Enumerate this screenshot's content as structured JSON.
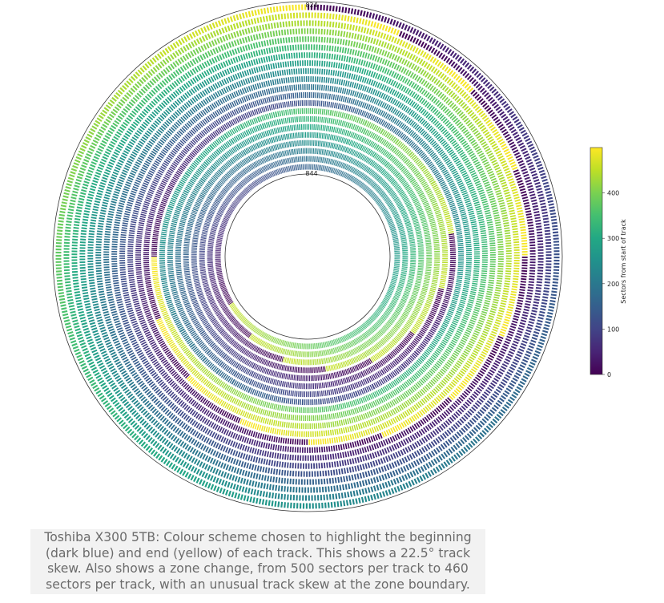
{
  "chart_data": {
    "type": "polar-heatmap",
    "title": "Toshiba X300 5TB",
    "track_labels": {
      "outer": "824",
      "inner": "844"
    },
    "outer_track": 824,
    "inner_track": 844,
    "zones": [
      {
        "tracks": [
          824,
          836
        ],
        "sectors_per_track": 500
      },
      {
        "tracks": [
          837,
          844
        ],
        "sectors_per_track": 460
      }
    ],
    "track_skew_degrees": 22.5,
    "colorbar": {
      "label": "Sectors from start of track",
      "range": [
        0,
        500
      ],
      "ticks": [
        0,
        100,
        200,
        300,
        400
      ],
      "tick_labels": [
        "0",
        "100",
        "200",
        "300",
        "400"
      ],
      "colormap": "viridis"
    }
  },
  "caption": {
    "lines": [
      "Toshiba X300 5TB: Colour scheme chosen to highlight the beginning",
      "(dark blue) and end (yellow) of each track. This shows a 22.5° track",
      "skew. Also shows a zone change, from 500 sectors per track to 460",
      "sectors per track, with an unusual track skew at the zone boundary."
    ]
  }
}
